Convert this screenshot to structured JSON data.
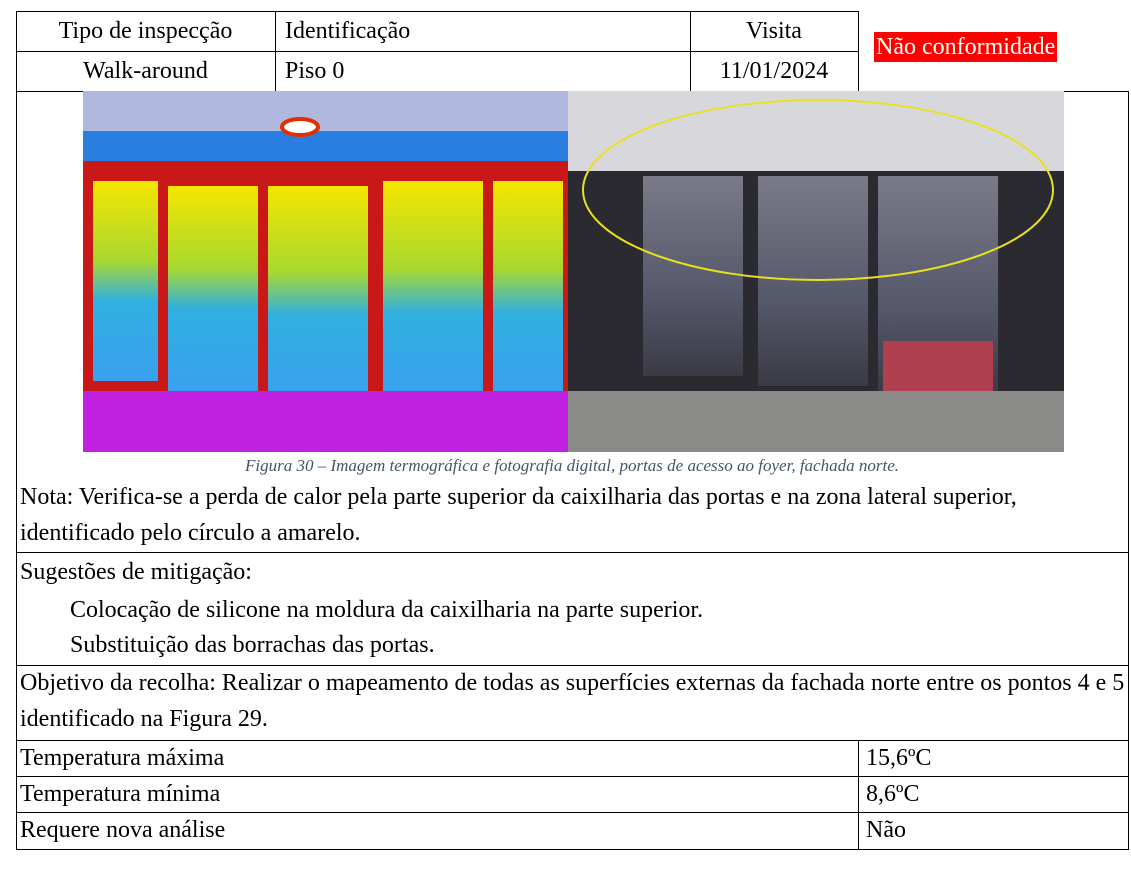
{
  "header": {
    "rows": [
      [
        "Tipo de inspecção",
        "Identificação",
        "Visita"
      ],
      [
        "Walk-around",
        "Piso 0",
        "11/01/2024"
      ]
    ],
    "status": "Não conformidade"
  },
  "figure": {
    "caption": "Figura 30 – Imagem termográfica e fotografia digital, portas de acesso ao foyer, fachada norte."
  },
  "note": "Nota: Verifica-se a perda de calor pela parte superior da caixilharia das portas e na zona lateral superior, identificado pelo círculo a amarelo.",
  "mitigation": {
    "title": "Sugestões de mitigação:",
    "items": [
      "Colocação de silicone na moldura da caixilharia na parte superior.",
      "Substituição das borrachas das portas."
    ]
  },
  "objective": "Objetivo da recolha: Realizar o mapeamento de todas as superfícies externas da fachada norte entre os pontos 4 e 5 identificado na Figura 29.",
  "table": {
    "rows": [
      [
        "Temperatura máxima",
        "15,6ºC"
      ],
      [
        "Temperatura mínima",
        "8,6ºC"
      ],
      [
        "Requere nova análise",
        "Não"
      ]
    ]
  }
}
